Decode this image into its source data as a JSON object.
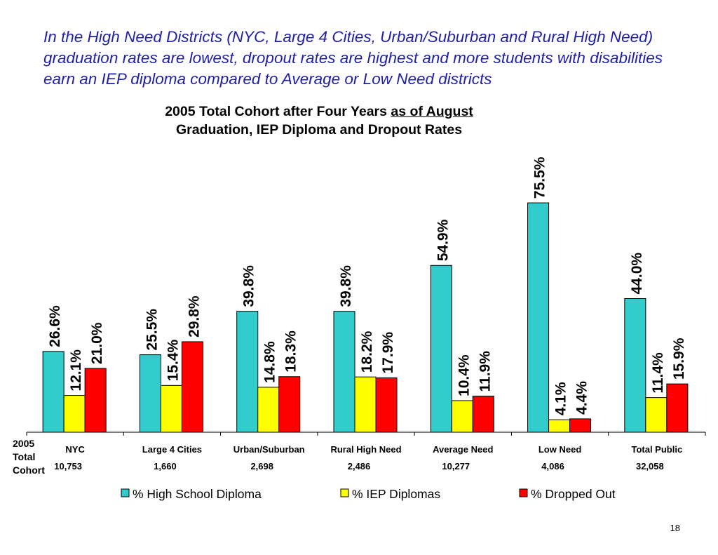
{
  "headline": "In the High Need Districts (NYC, Large 4 Cities, Urban/Suburban and Rural High Need) graduation rates are lowest, dropout rates are highest and more students with disabilities earn an IEP diploma compared to Average or Low Need districts",
  "page_number": "18",
  "colors": {
    "diploma": "#33CCCC",
    "iep": "#FFFF00",
    "dropout": "#FF0000",
    "headline": "#1F1FA8"
  },
  "chart_data": {
    "type": "bar",
    "title_line1": "2005 Total Cohort after Four Years",
    "title_line1_underlined": "as of August",
    "title_line2": "Graduation, IEP Diploma and Dropout Rates",
    "cohort_row_label": [
      "2005",
      "Total",
      "Cohort"
    ],
    "categories": [
      "NYC",
      "Large 4 Cities",
      "Urban/Suburban",
      "Rural High Need",
      "Average Need",
      "Low Need",
      "Total Public"
    ],
    "cohort_counts": [
      "10,753",
      "1,660",
      "2,698",
      "2,486",
      "10,277",
      "4,086",
      "32,058"
    ],
    "ylim": [
      0,
      100
    ],
    "grid": false,
    "legend_position": "bottom",
    "series": [
      {
        "name": "% High School Diploma",
        "color": "#33CCCC",
        "values": [
          26.6,
          25.5,
          39.8,
          39.8,
          54.9,
          75.5,
          44.0
        ],
        "labels": [
          "26.6%",
          "25.5%",
          "39.8%",
          "39.8%",
          "54.9%",
          "75.5%",
          "44.0%"
        ]
      },
      {
        "name": "% IEP Diplomas",
        "color": "#FFFF00",
        "values": [
          12.1,
          15.4,
          14.8,
          18.2,
          10.4,
          4.1,
          11.4
        ],
        "labels": [
          "12.1%",
          "15.4%",
          "14.8%",
          "18.2%",
          "10.4%",
          "4.1%",
          "11.4%"
        ]
      },
      {
        "name": "% Dropped Out",
        "color": "#FF0000",
        "values": [
          21.0,
          29.8,
          18.3,
          17.9,
          11.9,
          4.4,
          15.9
        ],
        "labels": [
          "21.0%",
          "29.8%",
          "18.3%",
          "17.9%",
          "11.9%",
          "4.4%",
          "15.9%"
        ]
      }
    ]
  }
}
